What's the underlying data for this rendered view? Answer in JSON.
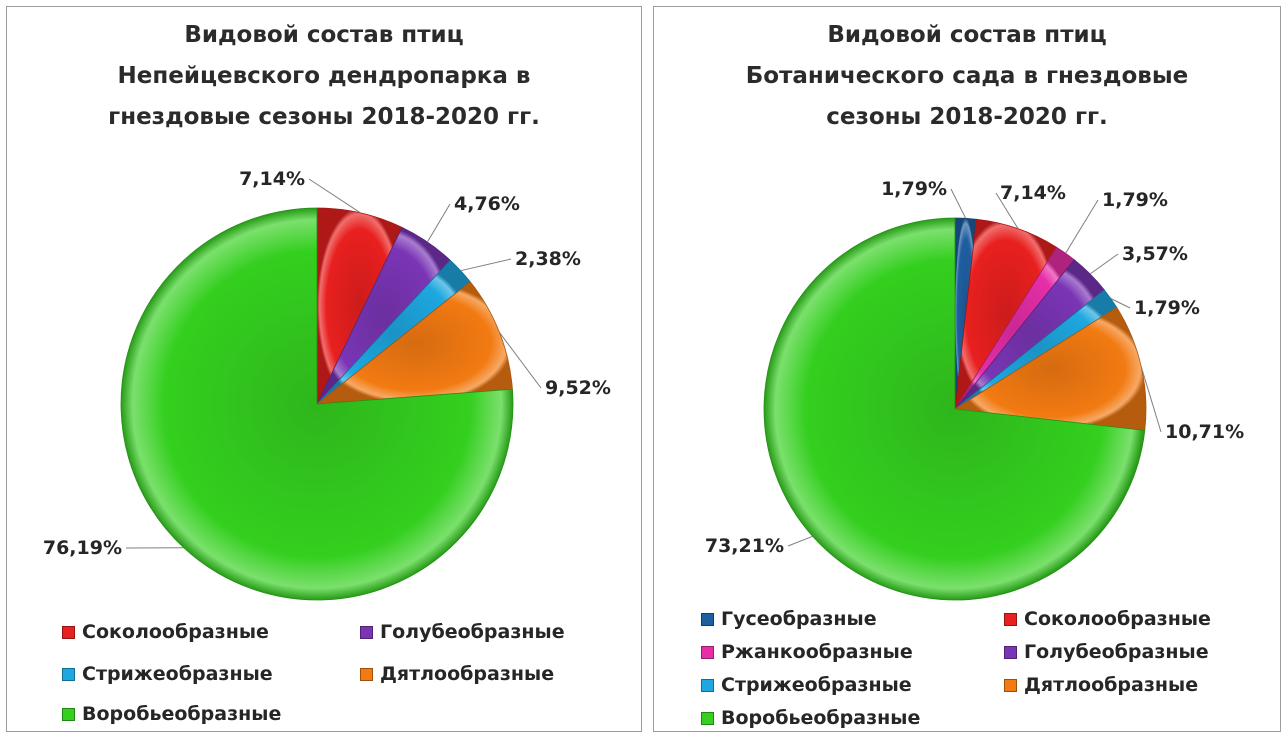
{
  "chart_data": [
    {
      "type": "pie",
      "title_lines": [
        "Видовой состав птиц",
        "Непейцевского дендропарка в",
        "гнездовые сезоны 2018-2020 гг."
      ],
      "slices": [
        {
          "name": "Соколообразные",
          "value": 7.14,
          "label": "7,14%",
          "color": "#e8201f"
        },
        {
          "name": "Голубеобразные",
          "value": 4.76,
          "label": "4,76%",
          "color": "#7a35b5"
        },
        {
          "name": "Стрижеобразные",
          "value": 2.38,
          "label": "2,38%",
          "color": "#1ea7e0"
        },
        {
          "name": "Дятлообразные",
          "value": 9.52,
          "label": "9,52%",
          "color": "#f27a12"
        },
        {
          "name": "Воробьеобразные",
          "value": 76.19,
          "label": "76,19%",
          "color": "#34cf1f"
        }
      ],
      "legend": [
        "Соколообразные",
        "Голубеобразные",
        "Стрижеобразные",
        "Дятлообразные",
        "Воробьеобразные"
      ]
    },
    {
      "type": "pie",
      "title_lines": [
        "Видовой состав птиц",
        "Ботанического сада в гнездовые",
        "сезоны 2018-2020 гг."
      ],
      "slices": [
        {
          "name": "Гусеобразные",
          "value": 1.79,
          "label": "1,79%",
          "color": "#1f5fa0"
        },
        {
          "name": "Соколообразные",
          "value": 7.14,
          "label": "7,14%",
          "color": "#e8201f"
        },
        {
          "name": "Ржанкообразные",
          "value": 1.79,
          "label": "1,79%",
          "color": "#e62ea8"
        },
        {
          "name": "Голубеобразные",
          "value": 3.57,
          "label": "3,57%",
          "color": "#7a35b5"
        },
        {
          "name": "Стрижеобразные",
          "value": 1.79,
          "label": "1,79%",
          "color": "#1ea7e0"
        },
        {
          "name": "Дятлообразные",
          "value": 10.71,
          "label": "10,71%",
          "color": "#f27a12"
        },
        {
          "name": "Воробьеобразные",
          "value": 73.21,
          "label": "73,21%",
          "color": "#34cf1f"
        }
      ],
      "legend": [
        "Гусеобразные",
        "Соколообразные",
        "Ржанкообразные",
        "Голубеобразные",
        "Стрижеобразные",
        "Дятлообразные",
        "Воробьеобразные"
      ]
    }
  ]
}
